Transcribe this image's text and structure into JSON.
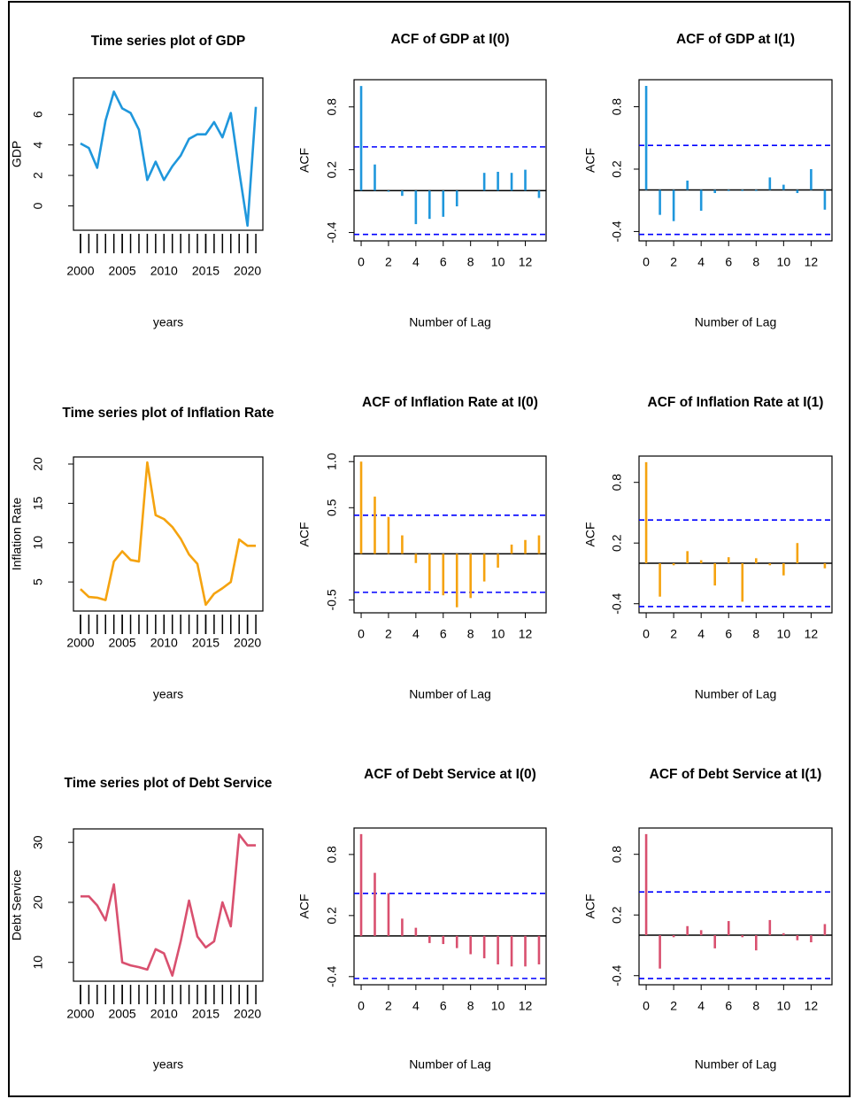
{
  "chart_data": [
    {
      "type": "line",
      "title": "Time series plot of GDP",
      "xlabel": "years",
      "ylabel": "GDP",
      "x": [
        2000,
        2001,
        2002,
        2003,
        2004,
        2005,
        2006,
        2007,
        2008,
        2009,
        2010,
        2011,
        2012,
        2013,
        2014,
        2015,
        2016,
        2017,
        2018,
        2019,
        2020,
        2021
      ],
      "values": [
        4.1,
        3.8,
        2.5,
        5.6,
        7.5,
        6.4,
        6.1,
        5.0,
        1.7,
        2.9,
        1.7,
        2.6,
        3.3,
        4.4,
        4.7,
        4.7,
        5.5,
        4.5,
        6.1,
        2.3,
        -1.3,
        6.5
      ],
      "color": "#1f97dc",
      "xlim": [
        1999.16,
        2021.84
      ],
      "ylim": [
        -1.6,
        8.4
      ],
      "xticks": [
        2000,
        2005,
        2010,
        2015,
        2020
      ],
      "xminor_ticks": [
        2000,
        2001,
        2002,
        2003,
        2004,
        2005,
        2006,
        2007,
        2008,
        2009,
        2010,
        2011,
        2012,
        2013,
        2014,
        2015,
        2016,
        2017,
        2018,
        2019,
        2020,
        2021
      ],
      "yticks": [
        0,
        2,
        4,
        6
      ]
    },
    {
      "type": "acf",
      "title": "ACF of GDP at I(0)",
      "xlabel": "Number of Lag",
      "ylabel": "ACF",
      "x": [
        0,
        1,
        2,
        3,
        4,
        5,
        6,
        7,
        8,
        9,
        10,
        11,
        12,
        13
      ],
      "values": [
        1.0,
        0.25,
        -0.01,
        -0.05,
        -0.32,
        -0.27,
        -0.25,
        -0.15,
        0.0,
        0.17,
        0.18,
        0.17,
        0.2,
        -0.07
      ],
      "color": "#1f97dc",
      "ci": 0.418,
      "ci_color": "#0000ff",
      "xlim": [
        -0.52,
        13.52
      ],
      "ylim": [
        -0.48,
        1.06
      ],
      "xticks": [
        0,
        2,
        4,
        6,
        8,
        10,
        12
      ],
      "yticks": [
        -0.4,
        0.2,
        0.8
      ]
    },
    {
      "type": "acf",
      "title": "ACF of GDP at I(1)",
      "xlabel": "Number of Lag",
      "ylabel": "ACF",
      "x": [
        0,
        1,
        2,
        3,
        4,
        5,
        6,
        7,
        8,
        9,
        10,
        11,
        12,
        13
      ],
      "values": [
        1.0,
        -0.24,
        -0.3,
        0.09,
        -0.2,
        -0.03,
        -0.01,
        -0.01,
        -0.01,
        0.12,
        0.05,
        -0.03,
        0.2,
        -0.19
      ],
      "color": "#1f97dc",
      "ci": 0.428,
      "ci_color": "#0000ff",
      "xlim": [
        -0.52,
        13.52
      ],
      "ylim": [
        -0.49,
        1.06
      ],
      "xticks": [
        0,
        2,
        4,
        6,
        8,
        10,
        12
      ],
      "yticks": [
        -0.4,
        0.2,
        0.8
      ]
    },
    {
      "type": "line",
      "title": "Time series plot of Inflation Rate",
      "xlabel": "years",
      "ylabel": "Inflation Rate",
      "x": [
        2000,
        2001,
        2002,
        2003,
        2004,
        2005,
        2006,
        2007,
        2008,
        2009,
        2010,
        2011,
        2012,
        2013,
        2014,
        2015,
        2016,
        2017,
        2018,
        2019,
        2020,
        2021
      ],
      "values": [
        4.1,
        3.1,
        3.0,
        2.7,
        7.6,
        8.9,
        7.8,
        7.6,
        20.2,
        13.5,
        13.0,
        12.0,
        10.5,
        8.5,
        7.3,
        2.1,
        3.5,
        4.2,
        5.0,
        10.4,
        9.6,
        9.6
      ],
      "color": "#f5a30f",
      "xlim": [
        1999.16,
        2021.84
      ],
      "ylim": [
        1.3,
        20.9
      ],
      "xticks": [
        2000,
        2005,
        2010,
        2015,
        2020
      ],
      "xminor_ticks": [
        2000,
        2001,
        2002,
        2003,
        2004,
        2005,
        2006,
        2007,
        2008,
        2009,
        2010,
        2011,
        2012,
        2013,
        2014,
        2015,
        2016,
        2017,
        2018,
        2019,
        2020,
        2021
      ],
      "yticks": [
        5,
        10,
        15,
        20
      ]
    },
    {
      "type": "acf",
      "title": "ACF of Inflation Rate at I(0)",
      "xlabel": "Number of Lag",
      "ylabel": "ACF",
      "x": [
        0,
        1,
        2,
        3,
        4,
        5,
        6,
        7,
        8,
        9,
        10,
        11,
        12,
        13
      ],
      "values": [
        1.0,
        0.62,
        0.4,
        0.2,
        -0.1,
        -0.4,
        -0.45,
        -0.58,
        -0.48,
        -0.3,
        -0.15,
        0.1,
        0.15,
        0.2
      ],
      "color": "#f5a30f",
      "ci": 0.418,
      "ci_color": "#0000ff",
      "xlim": [
        -0.52,
        13.52
      ],
      "ylim": [
        -0.64,
        1.06
      ],
      "xticks": [
        0,
        2,
        4,
        6,
        8,
        10,
        12
      ],
      "yticks": [
        -0.5,
        0.5,
        {
          "value": 1,
          "label": "1.0"
        }
      ]
    },
    {
      "type": "acf",
      "title": "ACF of Inflation Rate at I(1)",
      "xlabel": "Number of Lag",
      "ylabel": "ACF",
      "x": [
        0,
        1,
        2,
        3,
        4,
        5,
        6,
        7,
        8,
        9,
        10,
        11,
        12,
        13
      ],
      "values": [
        1.0,
        -0.33,
        -0.02,
        0.12,
        0.03,
        -0.22,
        0.06,
        -0.38,
        0.05,
        -0.02,
        -0.12,
        0.2,
        0.0,
        -0.05
      ],
      "color": "#f5a30f",
      "ci": 0.428,
      "ci_color": "#0000ff",
      "xlim": [
        -0.52,
        13.52
      ],
      "ylim": [
        -0.49,
        1.06
      ],
      "xticks": [
        0,
        2,
        4,
        6,
        8,
        10,
        12
      ],
      "yticks": [
        -0.4,
        0.2,
        0.8
      ]
    },
    {
      "type": "line",
      "title": "Time series plot of Debt Service",
      "xlabel": "years",
      "ylabel": "Debt Service",
      "x": [
        2000,
        2001,
        2002,
        2003,
        2004,
        2005,
        2006,
        2007,
        2008,
        2009,
        2010,
        2011,
        2012,
        2013,
        2014,
        2015,
        2016,
        2017,
        2018,
        2019,
        2020,
        2021
      ],
      "values": [
        21,
        21,
        19.5,
        17,
        23,
        10,
        9.5,
        9.2,
        8.8,
        12.2,
        11.5,
        7.8,
        13.5,
        20.3,
        14.3,
        12.5,
        13.5,
        20,
        16,
        31.3,
        29.5,
        29.5
      ],
      "color": "#d9506f",
      "xlim": [
        1999.16,
        2021.84
      ],
      "ylim": [
        6.86,
        32.24
      ],
      "xticks": [
        2000,
        2005,
        2010,
        2015,
        2020
      ],
      "xminor_ticks": [
        2000,
        2001,
        2002,
        2003,
        2004,
        2005,
        2006,
        2007,
        2008,
        2009,
        2010,
        2011,
        2012,
        2013,
        2014,
        2015,
        2016,
        2017,
        2018,
        2019,
        2020,
        2021
      ],
      "yticks": [
        10,
        20,
        30
      ]
    },
    {
      "type": "acf",
      "title": "ACF of Debt Service at I(0)",
      "xlabel": "Number of Lag",
      "ylabel": "ACF",
      "x": [
        0,
        1,
        2,
        3,
        4,
        5,
        6,
        7,
        8,
        9,
        10,
        11,
        12,
        13
      ],
      "values": [
        1.0,
        0.62,
        0.42,
        0.17,
        0.08,
        -0.07,
        -0.08,
        -0.12,
        -0.18,
        -0.22,
        -0.28,
        -0.3,
        -0.3,
        -0.28
      ],
      "color": "#d9506f",
      "ci": 0.418,
      "ci_color": "#0000ff",
      "xlim": [
        -0.52,
        13.52
      ],
      "ylim": [
        -0.48,
        1.06
      ],
      "xticks": [
        0,
        2,
        4,
        6,
        8,
        10,
        12
      ],
      "yticks": [
        -0.4,
        0.2,
        0.8
      ]
    },
    {
      "type": "acf",
      "title": "ACF of Debt Service at I(1)",
      "xlabel": "Number of Lag",
      "ylabel": "ACF",
      "x": [
        0,
        1,
        2,
        3,
        4,
        5,
        6,
        7,
        8,
        9,
        10,
        11,
        12,
        13
      ],
      "values": [
        1.0,
        -0.33,
        -0.02,
        0.09,
        0.05,
        -0.13,
        0.14,
        -0.02,
        -0.15,
        0.15,
        0.02,
        -0.05,
        -0.07,
        0.11
      ],
      "color": "#d9506f",
      "ci": 0.428,
      "ci_color": "#0000ff",
      "xlim": [
        -0.52,
        13.52
      ],
      "ylim": [
        -0.49,
        1.06
      ],
      "xticks": [
        0,
        2,
        4,
        6,
        8,
        10,
        12
      ],
      "yticks": [
        -0.4,
        0.2,
        0.8
      ]
    }
  ]
}
